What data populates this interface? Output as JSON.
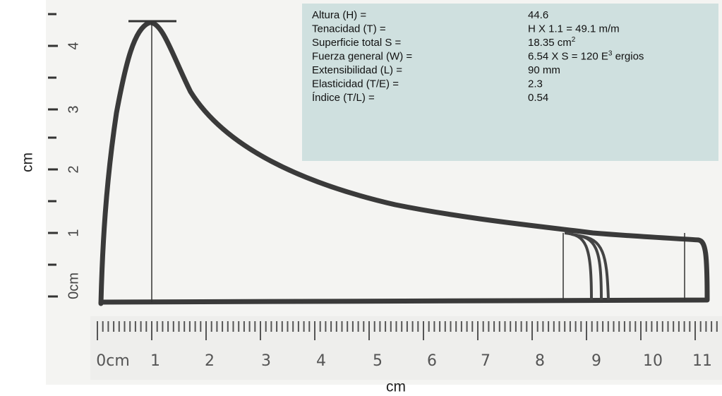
{
  "info_table": {
    "rows": [
      {
        "label": "Altura (H) =",
        "value": "44.6"
      },
      {
        "label": "Tenacidad (T) =",
        "value": "H X 1.1 = 49.1 m/m"
      },
      {
        "label": "Superficie total S =",
        "value": "18.35 cm",
        "value_sup": "2"
      },
      {
        "label": "Fuerza general (W) =",
        "value": "6.54 X S = 120 E",
        "value_sup": "3",
        "value_tail": " ergios"
      },
      {
        "label": "Extensibilidad (L) =",
        "value": "90 mm"
      },
      {
        "label": "Elasticidad (T/E) =",
        "value": "2.3"
      },
      {
        "label": "Índice (T/L) =",
        "value": "0.54"
      }
    ]
  },
  "x_axis": {
    "title": "cm",
    "ruler_labels": [
      "0cm",
      "1",
      "2",
      "3",
      "4",
      "5",
      "6",
      "7",
      "8",
      "9",
      "10",
      "11"
    ]
  },
  "y_axis": {
    "title": "cm",
    "labels": [
      "4",
      "3",
      "2",
      "1",
      "0cm"
    ]
  }
}
